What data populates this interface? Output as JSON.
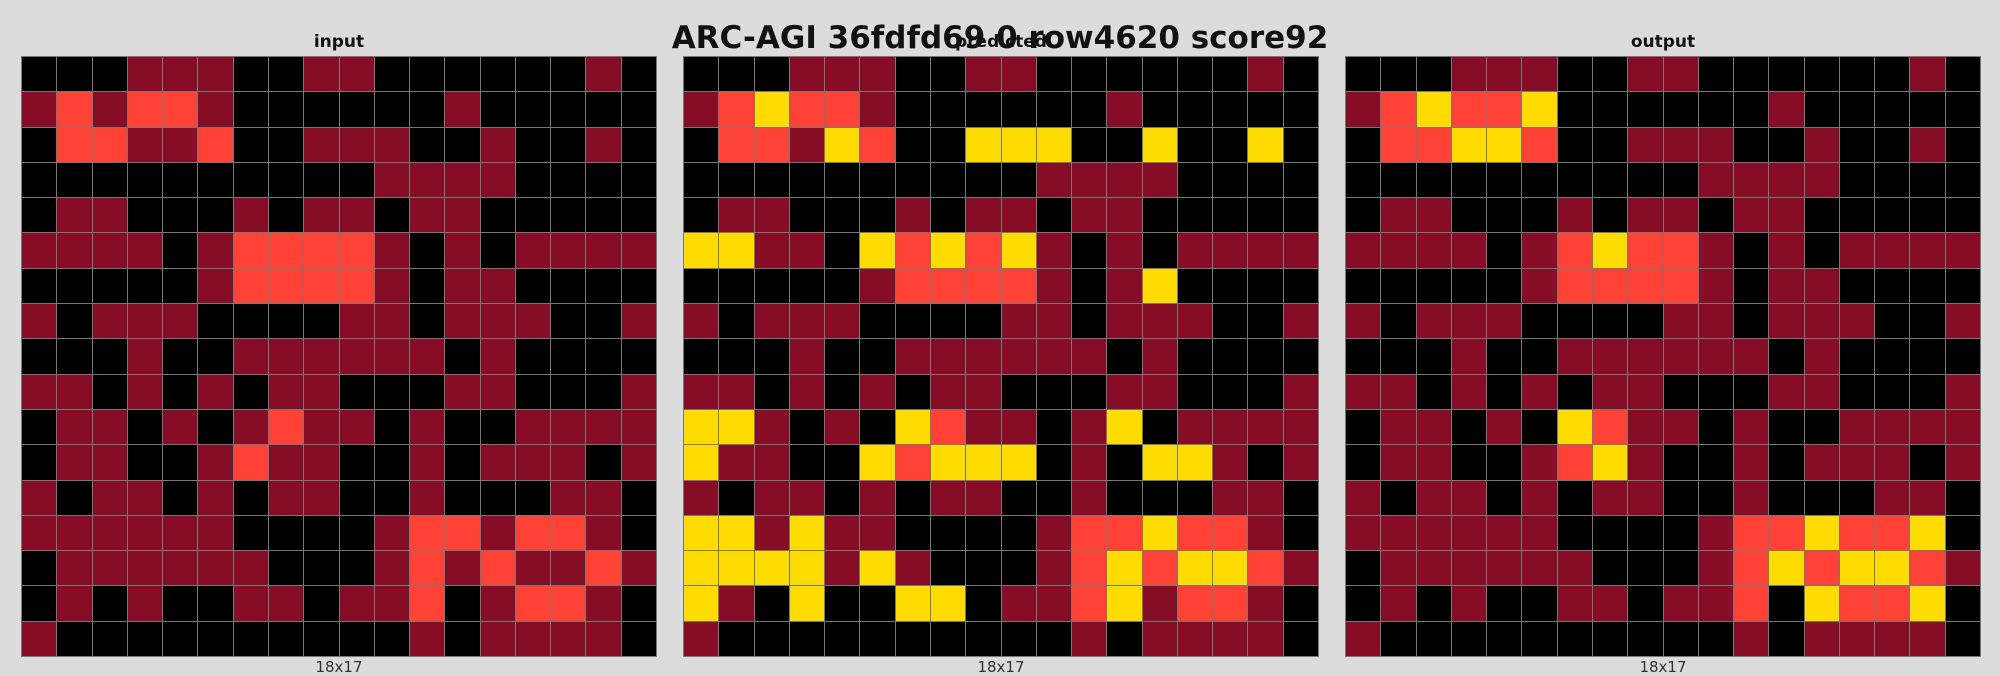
{
  "title": "ARC-AGI 36fdfd69 0 row4620 score92",
  "palette": {
    "0": "#000000",
    "1": "#870c25",
    "2": "#ff4136",
    "4": "#ffdc00"
  },
  "panels": [
    {
      "label": "input",
      "size": "18x17",
      "grid": [
        "000111001100000010",
        "121221000000100000",
        "022112001110010010",
        "000000000011110000",
        "011000101101100000",
        "111101222210101111",
        "000001222210110000",
        "101110000110111001",
        "000100111111010000",
        "110101011000110001",
        "011010121101001111",
        "011001211001011101",
        "101101011001000110",
        "111111000012212210",
        "011111100012121121",
        "010100110112012210",
        "100000000001011110"
      ]
    },
    {
      "label": "predicted",
      "size": "18x17",
      "grid": [
        "000111001100000010",
        "124221000000100000",
        "022142004440040040",
        "000000000011110000",
        "011000101101100000",
        "441104242410101111",
        "000001222210140000",
        "101110000110111001",
        "000100111111010000",
        "110101011000110001",
        "441010421101401111",
        "411004244401044101",
        "101101011001000110",
        "441411000012242210",
        "444414100012424421",
        "410400440112412210",
        "100000000001011110"
      ]
    },
    {
      "label": "output",
      "size": "18x17",
      "grid": [
        "000111001100000010",
        "124224000000100000",
        "022442001110010010",
        "000000000011110000",
        "011000101101100000",
        "111101242210101111",
        "000001222210110000",
        "101110000110111001",
        "000100111111010000",
        "110101011000110001",
        "011010421101001111",
        "011001241001011101",
        "101101011001000110",
        "111111000012242240",
        "011111100012424421",
        "010100110112042240",
        "100000000001011110"
      ]
    }
  ]
}
